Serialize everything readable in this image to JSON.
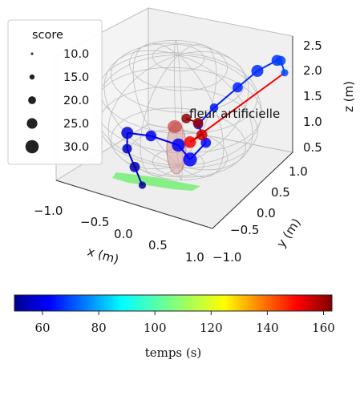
{
  "chart_data": {
    "type": "scatter",
    "title": "",
    "xlabel": "x (m)",
    "ylabel": "y (m)",
    "zlabel": "z (m)",
    "xlim": [
      -1.0,
      1.0
    ],
    "ylim": [
      -1.0,
      1.0
    ],
    "zlim": [
      0.5,
      2.5
    ],
    "x_ticks": [
      "−1.0",
      "−0.5",
      "0.0",
      "0.5",
      "1.0"
    ],
    "y_ticks": [
      "−1.0",
      "−0.5",
      "0.0",
      "0.5",
      "1.0"
    ],
    "z_ticks": [
      "0.5",
      "1.0",
      "1.5",
      "2.0",
      "2.5"
    ],
    "legend": {
      "title": "score",
      "placement": "upper-left",
      "entries": [
        "10.0",
        "15.0",
        "20.0",
        "25.0",
        "30.0"
      ],
      "sizes": [
        10.0,
        15.0,
        20.0,
        25.0,
        30.0
      ]
    },
    "annotation": "fleur artificielle",
    "colorbar": {
      "label": "temps (s)",
      "min": 50,
      "max": 163,
      "ticks": [
        "60",
        "80",
        "100",
        "120",
        "140",
        "160"
      ],
      "tick_values": [
        60,
        80,
        100,
        120,
        140,
        160
      ],
      "colormap": "jet"
    },
    "series": [
      {
        "points": [
          {
            "x": 0.0,
            "y": -0.8,
            "z": 0.7,
            "t": 52,
            "score": 12
          },
          {
            "x": -0.2,
            "y": -0.6,
            "z": 0.8,
            "t": 55,
            "score": 20
          },
          {
            "x": -0.4,
            "y": -0.4,
            "z": 0.9,
            "t": 58,
            "score": 18
          },
          {
            "x": -0.5,
            "y": -0.2,
            "z": 1.0,
            "t": 60,
            "score": 25
          },
          {
            "x": -0.3,
            "y": 0.0,
            "z": 0.9,
            "t": 62,
            "score": 22
          },
          {
            "x": 0.0,
            "y": 0.1,
            "z": 0.8,
            "t": 63,
            "score": 28
          },
          {
            "x": 0.2,
            "y": 0.0,
            "z": 0.7,
            "t": 64,
            "score": 30
          },
          {
            "x": 0.3,
            "y": 0.2,
            "z": 0.9,
            "t": 65,
            "score": 20
          },
          {
            "x": 0.1,
            "y": 0.4,
            "z": 1.0,
            "t": 66,
            "score": 18
          },
          {
            "x": 0.2,
            "y": 0.6,
            "z": 1.2,
            "t": 67,
            "score": 15
          },
          {
            "x": 0.4,
            "y": 0.8,
            "z": 1.5,
            "t": 68,
            "score": 20
          },
          {
            "x": 0.6,
            "y": 0.9,
            "z": 1.8,
            "t": 69,
            "score": 25
          },
          {
            "x": 0.8,
            "y": 1.0,
            "z": 2.0,
            "t": 70,
            "score": 22
          },
          {
            "x": 0.9,
            "y": 0.9,
            "z": 2.1,
            "t": 71,
            "score": 18
          },
          {
            "x": 1.0,
            "y": 0.8,
            "z": 2.0,
            "t": 72,
            "score": 12
          },
          {
            "x": 0.2,
            "y": 0.0,
            "z": 1.0,
            "t": 150,
            "score": 24
          },
          {
            "x": 0.3,
            "y": 0.1,
            "z": 1.1,
            "t": 155,
            "score": 22
          },
          {
            "x": 0.2,
            "y": 0.2,
            "z": 1.2,
            "t": 160,
            "score": 20
          },
          {
            "x": 0.1,
            "y": 0.1,
            "z": 1.3,
            "t": 162,
            "score": 18
          }
        ]
      }
    ],
    "grid": true
  }
}
